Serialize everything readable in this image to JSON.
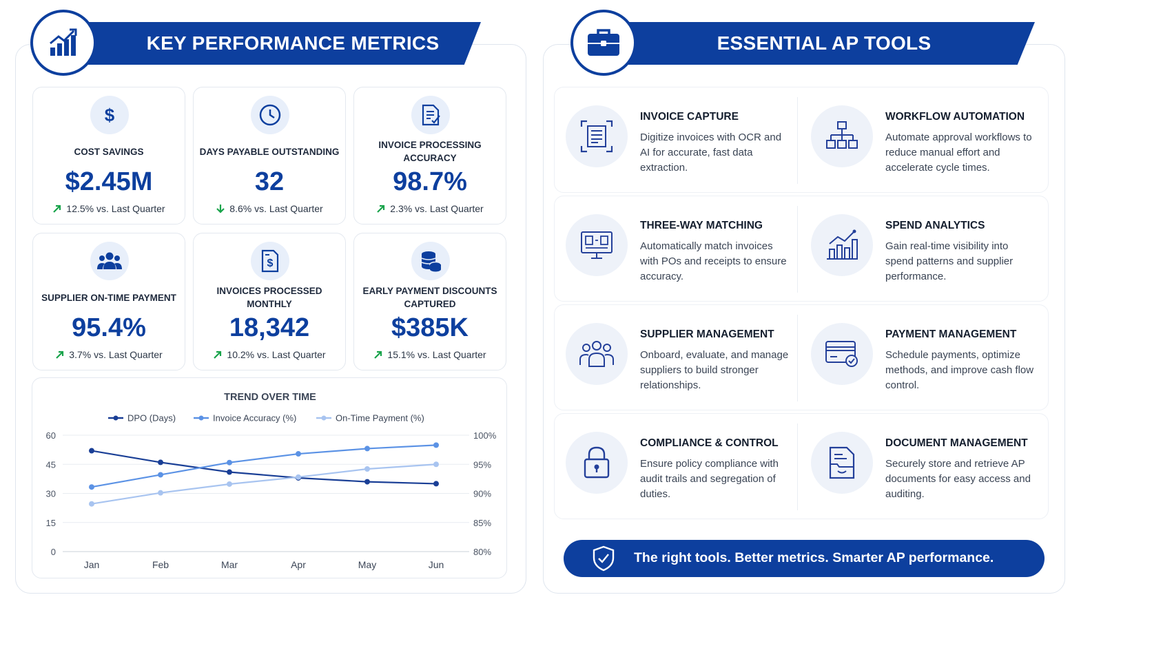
{
  "left": {
    "title": "KEY PERFORMANCE METRICS",
    "icon": "bar-chart-growth-icon",
    "kpis": [
      {
        "label": "COST SAVINGS",
        "value": "$2.45M",
        "change": "12.5% vs. Last Quarter",
        "direction": "up",
        "icon": "dollar-icon"
      },
      {
        "label": "DAYS PAYABLE OUTSTANDING",
        "value": "32",
        "change": "8.6% vs. Last Quarter",
        "direction": "down",
        "icon": "clock-icon"
      },
      {
        "label": "INVOICE PROCESSING ACCURACY",
        "value": "98.7%",
        "change": "2.3% vs. Last Quarter",
        "direction": "up",
        "icon": "document-check-icon"
      },
      {
        "label": "SUPPLIER ON-TIME PAYMENT",
        "value": "95.4%",
        "change": "3.7% vs. Last Quarter",
        "direction": "up",
        "icon": "people-icon"
      },
      {
        "label": "INVOICES PROCESSED MONTHLY",
        "value": "18,342",
        "change": "10.2% vs. Last Quarter",
        "direction": "up",
        "icon": "invoice-dollar-icon"
      },
      {
        "label": "EARLY PAYMENT DISCOUNTS CAPTURED",
        "value": "$385K",
        "change": "15.1% vs. Last Quarter",
        "direction": "up",
        "icon": "coins-icon"
      }
    ]
  },
  "colors": {
    "primary": "#0d3f9e",
    "up": "#18a34a",
    "down": "#18a34a",
    "series": [
      "#1a3f96",
      "#5b92e5",
      "#a8c4f0"
    ]
  },
  "chart_data": {
    "type": "line",
    "title": "TREND OVER TIME",
    "categories": [
      "Jan",
      "Feb",
      "Mar",
      "Apr",
      "May",
      "Jun"
    ],
    "series": [
      {
        "name": "DPO (Days)",
        "axis": "left",
        "values": [
          52,
          46,
          41,
          38,
          36,
          35
        ]
      },
      {
        "name": "Invoice Accuracy (%)",
        "axis": "right",
        "values": [
          91.1,
          93.2,
          95.3,
          96.8,
          97.7,
          98.3
        ]
      },
      {
        "name": "On-Time Payment (%)",
        "axis": "right",
        "values": [
          88.2,
          90.1,
          91.6,
          92.8,
          94.2,
          95.0
        ]
      }
    ],
    "y_left": {
      "ticks": [
        "60",
        "45",
        "30",
        "15",
        "0"
      ],
      "range": [
        0,
        60
      ]
    },
    "y_right": {
      "ticks": [
        "100%",
        "95%",
        "90%",
        "85%",
        "80%"
      ],
      "range": [
        80,
        100
      ]
    },
    "legend": "top",
    "grid": true
  },
  "right": {
    "title": "ESSENTIAL AP TOOLS",
    "icon": "briefcase-icon",
    "tools": [
      {
        "title": "INVOICE CAPTURE",
        "desc": "Digitize invoices with OCR and AI for accurate, fast data extraction.",
        "icon": "scan-document-icon"
      },
      {
        "title": "WORKFLOW AUTOMATION",
        "desc": "Automate approval workflows to reduce manual effort and accelerate cycle times.",
        "icon": "workflow-icon"
      },
      {
        "title": "THREE-WAY MATCHING",
        "desc": "Automatically match invoices with POs and receipts to ensure accuracy.",
        "icon": "monitor-match-icon"
      },
      {
        "title": "SPEND ANALYTICS",
        "desc": "Gain real-time visibility into spend patterns and supplier performance.",
        "icon": "analytics-icon"
      },
      {
        "title": "SUPPLIER MANAGEMENT",
        "desc": "Onboard, evaluate, and manage suppliers to build stronger relationships.",
        "icon": "suppliers-icon"
      },
      {
        "title": "PAYMENT MANAGEMENT",
        "desc": "Schedule payments, optimize methods, and improve cash flow control.",
        "icon": "payment-card-icon"
      },
      {
        "title": "COMPLIANCE & CONTROL",
        "desc": "Ensure policy compliance with audit trails and segregation of duties.",
        "icon": "lock-icon"
      },
      {
        "title": "DOCUMENT MANAGEMENT",
        "desc": "Securely store and retrieve AP documents for easy access and auditing.",
        "icon": "document-folder-icon"
      }
    ],
    "tagline": "The right tools. Better metrics. Smarter AP performance.",
    "tagline_icon": "shield-check-icon"
  }
}
